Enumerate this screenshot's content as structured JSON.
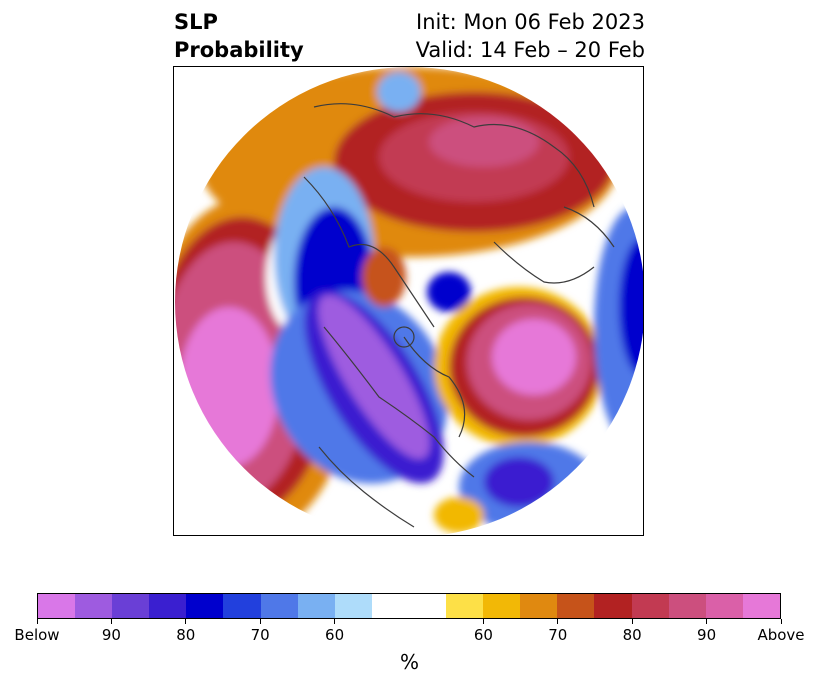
{
  "header": {
    "title_line1": "SLP",
    "title_line2": "Probability",
    "init": "Init: Mon 06 Feb 2023",
    "valid": "Valid: 14 Feb – 20 Feb"
  },
  "colorbar": {
    "unit_label": "%",
    "tick_labels": [
      "Below",
      "90",
      "80",
      "70",
      "60",
      "60",
      "70",
      "80",
      "90",
      "Above"
    ],
    "below_colors": [
      "#d977e8",
      "#9e5be0",
      "#6a3fd6",
      "#3a1fd0",
      "#0000cd",
      "#2240dd",
      "#4f78e8",
      "#79b0f2",
      "#aedcfa"
    ],
    "neutral_color": "#ffffff",
    "above_colors": [
      "#fde047",
      "#f2b806",
      "#e08910",
      "#c6531a",
      "#b22222",
      "#c23a52",
      "#cc4f7e",
      "#da60a8",
      "#e678d8"
    ]
  }
}
